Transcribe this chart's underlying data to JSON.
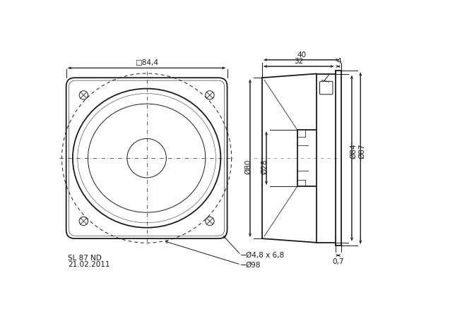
{
  "bg_color": "#ffffff",
  "lc": "#1a1a1a",
  "thin_lw": 0.7,
  "thick_lw": 1.3,
  "dim_lw": 0.7,
  "fs": 7.5,
  "tfs": 7.5,
  "labels": {
    "sq84_4": "□84,4",
    "d98": "Ø98",
    "d4_8x6_8": "Ø4,8 x 6,8",
    "model": "SL 87 ND",
    "date": "21.02.2011",
    "d80": "Ø80",
    "d28": "Ø28",
    "d84": "Ø84",
    "d87": "Ø87",
    "dim40": "40",
    "dim32": "32",
    "dim4": "4",
    "dim07": "0,7"
  }
}
